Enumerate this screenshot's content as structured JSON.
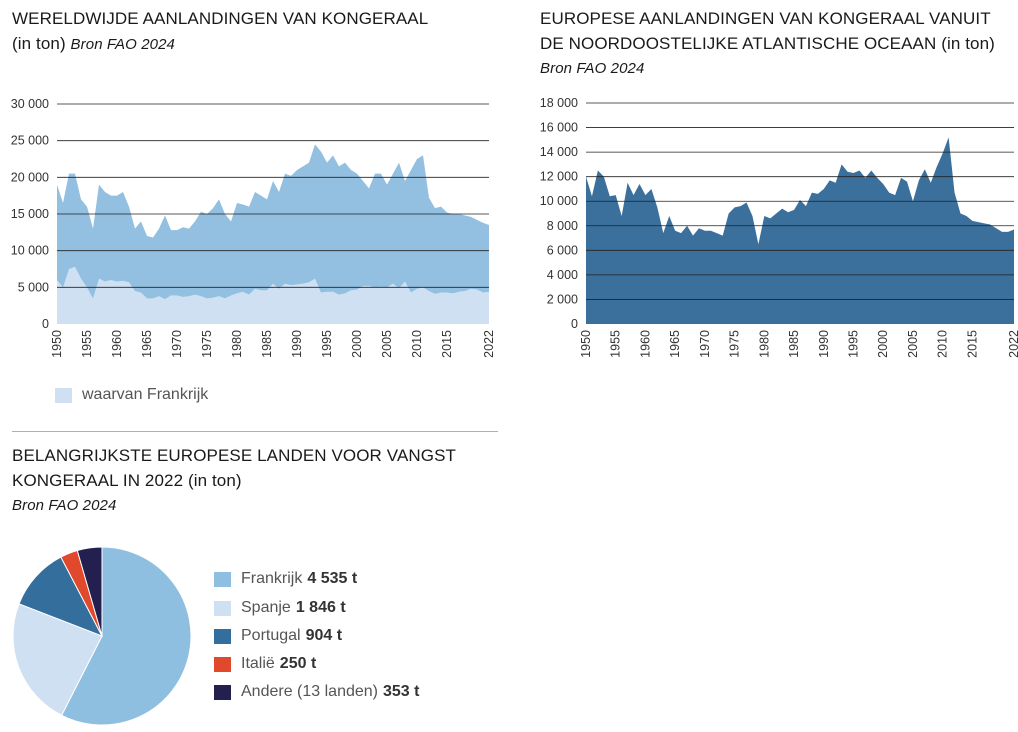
{
  "chart_data": [
    {
      "type": "area",
      "title": "WERELDWIJDE AANLANDINGEN VAN KONGERAAL",
      "subtitle": "(in ton)",
      "source": "Bron FAO 2024",
      "x": [
        1950,
        1951,
        1952,
        1953,
        1954,
        1955,
        1956,
        1957,
        1958,
        1959,
        1960,
        1961,
        1962,
        1963,
        1964,
        1965,
        1966,
        1967,
        1968,
        1969,
        1970,
        1971,
        1972,
        1973,
        1974,
        1975,
        1976,
        1977,
        1978,
        1979,
        1980,
        1981,
        1982,
        1983,
        1984,
        1985,
        1986,
        1987,
        1988,
        1989,
        1990,
        1991,
        1992,
        1993,
        1994,
        1995,
        1996,
        1997,
        1998,
        1999,
        2000,
        2001,
        2002,
        2003,
        2004,
        2005,
        2006,
        2007,
        2008,
        2009,
        2010,
        2011,
        2012,
        2013,
        2014,
        2015,
        2016,
        2017,
        2018,
        2019,
        2020,
        2021,
        2022
      ],
      "series": [
        {
          "values": [
            19000,
            16500,
            20500,
            20500,
            17000,
            16000,
            13000,
            19000,
            18000,
            17500,
            17500,
            18000,
            16000,
            13000,
            14000,
            12000,
            11800,
            13000,
            14800,
            12800,
            12800,
            13200,
            13000,
            14000,
            15300,
            15000,
            15800,
            17000,
            15000,
            14000,
            16500,
            16300,
            16000,
            18000,
            17500,
            17000,
            19500,
            18000,
            20500,
            20200,
            21000,
            21500,
            22000,
            24500,
            23500,
            22000,
            23000,
            21500,
            22000,
            21000,
            20500,
            19500,
            18500,
            20500,
            20500,
            19000,
            20500,
            22000,
            19500,
            21000,
            22500,
            23000,
            17200,
            15800,
            16000,
            15200,
            15000,
            15000,
            14800,
            14600,
            14200,
            13800,
            13500
          ]
        },
        {
          "name": "waarvan Frankrijk",
          "values": [
            6000,
            5000,
            7500,
            7800,
            6200,
            5000,
            3500,
            6200,
            5800,
            6000,
            5800,
            5900,
            5700,
            4500,
            4300,
            3500,
            3500,
            3800,
            3400,
            3900,
            3900,
            3700,
            3800,
            4000,
            3800,
            3500,
            3600,
            3800,
            3500,
            3900,
            4200,
            4400,
            4000,
            4800,
            4600,
            4600,
            5500,
            4800,
            5500,
            5300,
            5400,
            5500,
            5700,
            6200,
            4300,
            4400,
            4400,
            4000,
            4200,
            4600,
            4700,
            5200,
            5200,
            5000,
            5100,
            5000,
            5500,
            4900,
            5800,
            4300,
            4800,
            5000,
            4500,
            4100,
            4300,
            4300,
            4200,
            4400,
            4500,
            4800,
            4700,
            4300,
            4400
          ]
        }
      ],
      "ylim": [
        0,
        30000
      ],
      "yticks": [
        "0",
        "5 000",
        "10 000",
        "15 000",
        "20 000",
        "25 000",
        "30 000"
      ],
      "xticks": [
        "1950",
        "1955",
        "1960",
        "1965",
        "1970",
        "1975",
        "1980",
        "1985",
        "1990",
        "1995",
        "2000",
        "2005",
        "2010",
        "2015",
        "2022"
      ],
      "legend": "bottom-left",
      "grid": true
    },
    {
      "type": "area",
      "title": "EUROPESE AANLANDINGEN VAN KONGERAAL VANUIT DE NOORDOOSTELIJKE ATLANTISCHE OCEAAN",
      "subtitle": "(in ton)",
      "source": "Bron FAO 2024",
      "x": [
        1950,
        1951,
        1952,
        1953,
        1954,
        1955,
        1956,
        1957,
        1958,
        1959,
        1960,
        1961,
        1962,
        1963,
        1964,
        1965,
        1966,
        1967,
        1968,
        1969,
        1970,
        1971,
        1972,
        1973,
        1974,
        1975,
        1976,
        1977,
        1978,
        1979,
        1980,
        1981,
        1982,
        1983,
        1984,
        1985,
        1986,
        1987,
        1988,
        1989,
        1990,
        1991,
        1992,
        1993,
        1994,
        1995,
        1996,
        1997,
        1998,
        1999,
        2000,
        2001,
        2002,
        2003,
        2004,
        2005,
        2006,
        2007,
        2008,
        2009,
        2010,
        2011,
        2012,
        2013,
        2014,
        2015,
        2016,
        2017,
        2018,
        2019,
        2020,
        2021,
        2022
      ],
      "series": [
        {
          "values": [
            12000,
            10400,
            12500,
            12000,
            10400,
            10500,
            8800,
            11500,
            10500,
            11400,
            10500,
            11000,
            9500,
            7400,
            8800,
            7600,
            7400,
            8000,
            7200,
            7800,
            7600,
            7600,
            7400,
            7200,
            9000,
            9500,
            9600,
            9900,
            8800,
            6500,
            8800,
            8600,
            9000,
            9400,
            9100,
            9300,
            10100,
            9600,
            10700,
            10600,
            11000,
            11700,
            11500,
            13000,
            12400,
            12300,
            12500,
            11900,
            12500,
            11900,
            11400,
            10700,
            10500,
            11900,
            11600,
            10000,
            11700,
            12600,
            11500,
            12800,
            13900,
            15200,
            10700,
            9000,
            8800,
            8400,
            8300,
            8200,
            8100,
            7800,
            7500,
            7500,
            7700
          ]
        }
      ],
      "ylim": [
        0,
        18000
      ],
      "yticks": [
        "0",
        "2 000",
        "4 000",
        "6 000",
        "8 000",
        "10 000",
        "12 000",
        "14 000",
        "16 000",
        "18 000"
      ],
      "xticks": [
        "1950",
        "1955",
        "1960",
        "1965",
        "1970",
        "1975",
        "1980",
        "1985",
        "1990",
        "1995",
        "2000",
        "2005",
        "2010",
        "2015",
        "2022"
      ],
      "grid": true
    },
    {
      "type": "pie",
      "title": "BELANGRIJKSTE EUROPESE LANDEN VOOR VANGST KONGERAAL IN 2022 (in ton)",
      "source": "Bron FAO 2024",
      "slices": [
        {
          "label": "Frankrijk",
          "value_label": "4 535 t",
          "value": 4535,
          "color": "#8fbfe0"
        },
        {
          "label": "Spanje",
          "value_label": "1 846 t",
          "value": 1846,
          "color": "#cfe0f3"
        },
        {
          "label": "Portugal",
          "value_label": "904 t",
          "value": 904,
          "color": "#336e9c"
        },
        {
          "label": "Italië",
          "value_label": "250 t",
          "value": 250,
          "color": "#e0492b"
        },
        {
          "label": "Andere (13 landen)",
          "value_label": "353 t",
          "value": 353,
          "color": "#232050"
        }
      ],
      "legend": "right"
    }
  ],
  "colors": {
    "total_area": "#93c0e1",
    "france_area": "#cfe0f3",
    "europe_area": "#3b6f9c",
    "grid": "#222222",
    "divider": "#8fb7d9"
  }
}
